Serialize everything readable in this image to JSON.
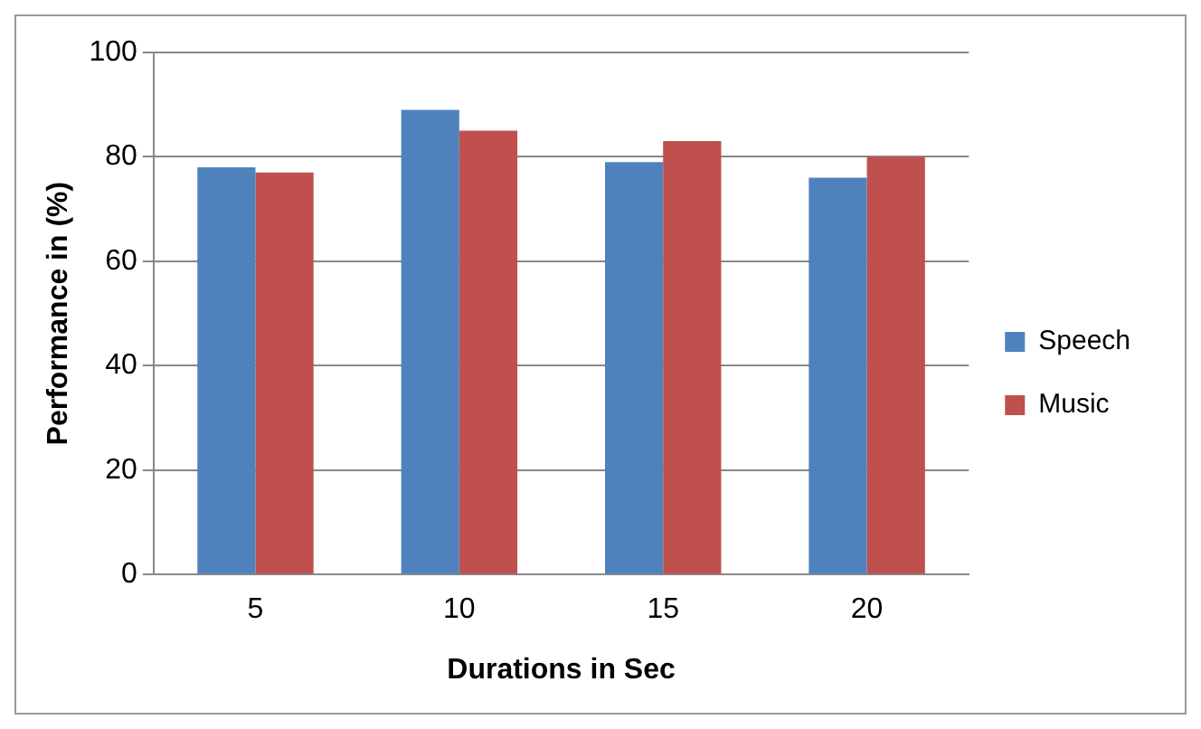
{
  "chart_data": {
    "type": "bar",
    "xlabel": "Durations in Sec",
    "ylabel": "Performance in (%)",
    "categories": [
      "5",
      "10",
      "15",
      "20"
    ],
    "series": [
      {
        "name": "Speech",
        "color": "#4f81bd",
        "values": [
          78,
          89,
          79,
          76
        ]
      },
      {
        "name": "Music",
        "color": "#c0504d",
        "values": [
          77,
          85,
          83,
          80
        ]
      }
    ],
    "ylim": [
      0,
      100
    ],
    "yticks": [
      0,
      20,
      40,
      60,
      80,
      100
    ],
    "grid": "y",
    "legend": "right"
  }
}
